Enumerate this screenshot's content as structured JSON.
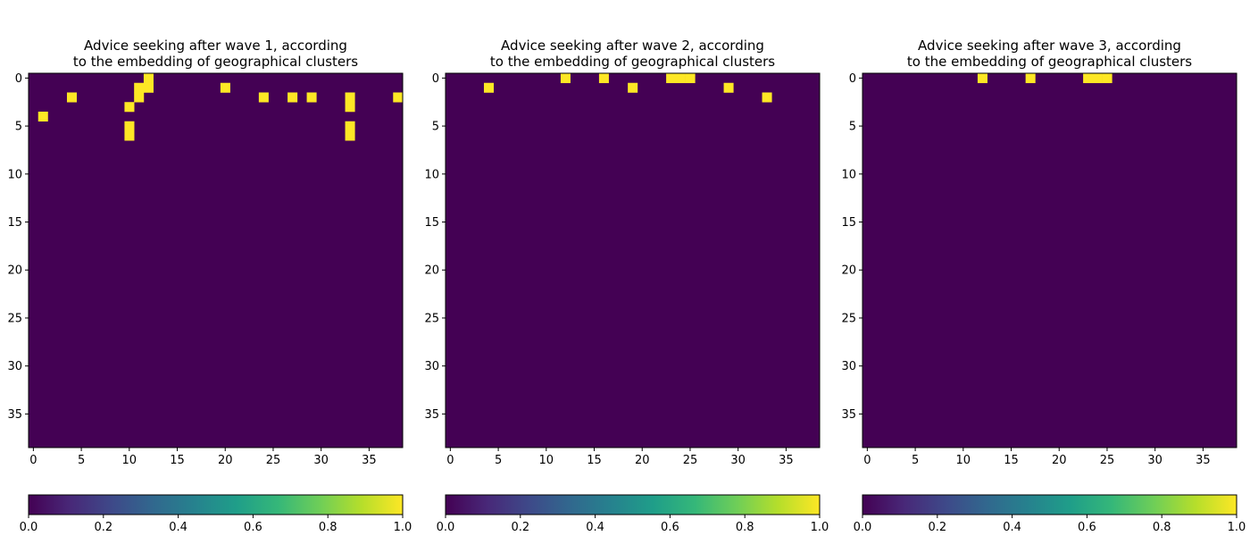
{
  "chart_data": [
    {
      "type": "heatmap",
      "title": "Advice seeking after wave 1, according\nto the embedding of geographical clusters",
      "size": 39,
      "xticks": [
        0,
        5,
        10,
        15,
        20,
        25,
        30,
        35
      ],
      "yticks": [
        0,
        5,
        10,
        15,
        20,
        25,
        30,
        35
      ],
      "colorbar": {
        "range": [
          0.0,
          1.0
        ],
        "ticks": [
          "0.0",
          "0.2",
          "0.4",
          "0.6",
          "0.8",
          "1.0"
        ],
        "colormap": "viridis"
      },
      "values_description": "binary matrix, rows (y) then cols (x)",
      "matrix": [
        "000000000000100000000000000000000000000",
        "000000000001100000001000000000000000000",
        "000010000001000000000000100101000100001",
        "000000000010000000000000000000000100000",
        "010000000000000000000000000000000000000",
        "000000000010000000000000000000000100000",
        "000000000010000000000000000000000100000",
        "000000000000000000000000000000000000000",
        "000000000000000000000000000000000000000",
        "000000000000000000000000000000000000000",
        "000000000000000000000000000000000000000",
        "000000000000000000000000000000000000000",
        "000000000000000000000000000000000000000",
        "000000000000000000000000000000000000000",
        "000000000000000000000000000000000000000",
        "000000000000000000000000000000000000000",
        "000000000000000000000000000000000000000",
        "000000000000000000000000000000000000000",
        "000000000000000000000000000000000000000",
        "000000000000000000000000000000000000000",
        "000000000000000000000000000000000000000",
        "000000000000000000000000000000000000000",
        "000000000000000000000000000000000000000",
        "000000000000000000000000000000000000000",
        "000000000000000000000000000000000000000",
        "000000000000000000000000000000000000000",
        "000000000000000000000000000000000000000",
        "000000000000000000000000000000000000000",
        "000000000000000000000000000000000000000",
        "000000000000000000000000000000000000000",
        "000000000000000000000000000000000000000",
        "000000000000000000000000000000000000000",
        "000000000000000000000000000000000000000",
        "000000000000000000000000000000000000000",
        "000000000000000000000000000000000000000",
        "000000000000000000000000000000000000000",
        "000000000000000000000000000000000000000",
        "000000000000000000000000000000000000000",
        "000000000000000000000000000000000000000"
      ]
    },
    {
      "type": "heatmap",
      "title": "Advice seeking after wave 2, according\nto the embedding of geographical clusters",
      "size": 39,
      "xticks": [
        0,
        5,
        10,
        15,
        20,
        25,
        30,
        35
      ],
      "yticks": [
        0,
        5,
        10,
        15,
        20,
        25,
        30,
        35
      ],
      "colorbar": {
        "range": [
          0.0,
          1.0
        ],
        "ticks": [
          "0.0",
          "0.2",
          "0.4",
          "0.6",
          "0.8",
          "1.0"
        ],
        "colormap": "viridis"
      },
      "values_description": "binary matrix, rows (y) then cols (x)",
      "matrix": [
        "000000000000100010000001110000000000000",
        "000010000000000000010000000001000000000",
        "000000000000000000000000000000000100000",
        "000000000000000000000000000000000000000",
        "000000000000000000000000000000000000000",
        "000000000000000000000000000000000000000",
        "000000000000000000000000000000000000000",
        "000000000000000000000000000000000000000",
        "000000000000000000000000000000000000000",
        "000000000000000000000000000000000000000",
        "000000000000000000000000000000000000000",
        "000000000000000000000000000000000000000",
        "000000000000000000000000000000000000000",
        "000000000000000000000000000000000000000",
        "000000000000000000000000000000000000000",
        "000000000000000000000000000000000000000",
        "000000000000000000000000000000000000000",
        "000000000000000000000000000000000000000",
        "000000000000000000000000000000000000000",
        "000000000000000000000000000000000000000",
        "000000000000000000000000000000000000000",
        "000000000000000000000000000000000000000",
        "000000000000000000000000000000000000000",
        "000000000000000000000000000000000000000",
        "000000000000000000000000000000000000000",
        "000000000000000000000000000000000000000",
        "000000000000000000000000000000000000000",
        "000000000000000000000000000000000000000",
        "000000000000000000000000000000000000000",
        "000000000000000000000000000000000000000",
        "000000000000000000000000000000000000000",
        "000000000000000000000000000000000000000",
        "000000000000000000000000000000000000000",
        "000000000000000000000000000000000000000",
        "000000000000000000000000000000000000000",
        "000000000000000000000000000000000000000",
        "000000000000000000000000000000000000000",
        "000000000000000000000000000000000000000",
        "000000000000000000000000000000000000000"
      ]
    },
    {
      "type": "heatmap",
      "title": "Advice seeking after wave 3, according\nto the embedding of geographical clusters",
      "size": 39,
      "xticks": [
        0,
        5,
        10,
        15,
        20,
        25,
        30,
        35
      ],
      "yticks": [
        0,
        5,
        10,
        15,
        20,
        25,
        30,
        35
      ],
      "colorbar": {
        "range": [
          0.0,
          1.0
        ],
        "ticks": [
          "0.0",
          "0.2",
          "0.4",
          "0.6",
          "0.8",
          "1.0"
        ],
        "colormap": "viridis"
      },
      "values_description": "binary matrix, rows (y) then cols (x)",
      "matrix": [
        "000000000000100001000001110000000000000",
        "000000000000000000000000000000000000000",
        "000000000000000000000000000000000000000",
        "000000000000000000000000000000000000000",
        "000000000000000000000000000000000000000",
        "000000000000000000000000000000000000000",
        "000000000000000000000000000000000000000",
        "000000000000000000000000000000000000000",
        "000000000000000000000000000000000000000",
        "000000000000000000000000000000000000000",
        "000000000000000000000000000000000000000",
        "000000000000000000000000000000000000000",
        "000000000000000000000000000000000000000",
        "000000000000000000000000000000000000000",
        "000000000000000000000000000000000000000",
        "000000000000000000000000000000000000000",
        "000000000000000000000000000000000000000",
        "000000000000000000000000000000000000000",
        "000000000000000000000000000000000000000",
        "000000000000000000000000000000000000000",
        "000000000000000000000000000000000000000",
        "000000000000000000000000000000000000000",
        "000000000000000000000000000000000000000",
        "000000000000000000000000000000000000000",
        "000000000000000000000000000000000000000",
        "000000000000000000000000000000000000000",
        "000000000000000000000000000000000000000",
        "000000000000000000000000000000000000000",
        "000000000000000000000000000000000000000",
        "000000000000000000000000000000000000000",
        "000000000000000000000000000000000000000",
        "000000000000000000000000000000000000000",
        "000000000000000000000000000000000000000",
        "000000000000000000000000000000000000000",
        "000000000000000000000000000000000000000",
        "000000000000000000000000000000000000000",
        "000000000000000000000000000000000000000",
        "000000000000000000000000000000000000000",
        "000000000000000000000000000000000000000"
      ]
    }
  ],
  "colors": {
    "low": "#440154",
    "high": "#fde725",
    "viridis_stops": [
      "#440154",
      "#482878",
      "#3e4989",
      "#31688e",
      "#26828e",
      "#1f9e89",
      "#35b779",
      "#6ece58",
      "#b5de2b",
      "#fde725"
    ]
  }
}
